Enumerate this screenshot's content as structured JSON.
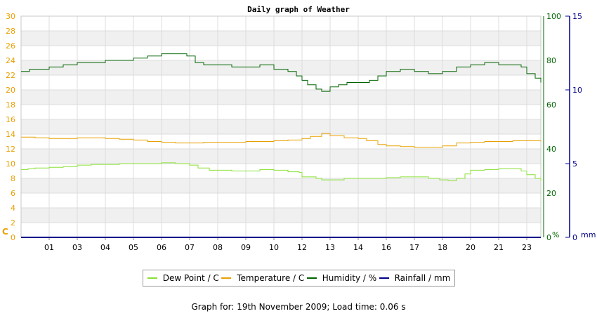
{
  "chart_data": {
    "type": "line",
    "title": "Daily graph of Weather",
    "footer": "Graph for: 19th November 2009; Load time: 0.06 s",
    "x_ticks": [
      "01",
      "03",
      "04",
      "05",
      "06",
      "07",
      "08",
      "09",
      "10",
      "12",
      "13",
      "14",
      "16",
      "17",
      "18",
      "20",
      "21",
      "23"
    ],
    "x_tick_hours": [
      1,
      2,
      3,
      4,
      5,
      6,
      7,
      8,
      9,
      10,
      11,
      12,
      13,
      14,
      15,
      16,
      17,
      18
    ],
    "x_range": [
      0,
      18.5
    ],
    "grid": true,
    "legend_position": "bottom",
    "left_axis": {
      "unit_label": "C",
      "range": [
        0,
        30
      ],
      "ticks": [
        0,
        2,
        4,
        6,
        8,
        10,
        12,
        14,
        16,
        18,
        20,
        22,
        24,
        26,
        28,
        30
      ],
      "color": "#e8a000"
    },
    "right_axis_1": {
      "unit_label": "%",
      "range": [
        0,
        100
      ],
      "ticks": [
        0,
        20,
        40,
        60,
        80,
        100
      ],
      "color": "#006400"
    },
    "right_axis_2": {
      "unit_label": "mm",
      "range": [
        0,
        15
      ],
      "ticks": [
        0,
        5,
        10,
        15
      ],
      "color": "#00008b"
    },
    "series": [
      {
        "name": "Dew Point / C",
        "axis": "left",
        "color": "#88e034",
        "points": [
          [
            0,
            9.2
          ],
          [
            0.25,
            9.3
          ],
          [
            0.5,
            9.4
          ],
          [
            1.0,
            9.5
          ],
          [
            1.5,
            9.6
          ],
          [
            2.0,
            9.8
          ],
          [
            2.5,
            9.9
          ],
          [
            3.0,
            9.9
          ],
          [
            3.5,
            10.0
          ],
          [
            4.0,
            10.0
          ],
          [
            4.5,
            10.0
          ],
          [
            5.0,
            10.1
          ],
          [
            5.5,
            10.0
          ],
          [
            6.0,
            9.8
          ],
          [
            6.3,
            9.4
          ],
          [
            6.7,
            9.1
          ],
          [
            7.0,
            9.1
          ],
          [
            7.5,
            9.0
          ],
          [
            8.0,
            9.0
          ],
          [
            8.5,
            9.2
          ],
          [
            9.0,
            9.1
          ],
          [
            9.5,
            8.9
          ],
          [
            9.9,
            8.8
          ],
          [
            10.0,
            8.2
          ],
          [
            10.5,
            8.0
          ],
          [
            10.7,
            7.8
          ],
          [
            11.0,
            7.8
          ],
          [
            11.5,
            8.0
          ],
          [
            12.0,
            8.0
          ],
          [
            12.5,
            8.0
          ],
          [
            13.0,
            8.1
          ],
          [
            13.5,
            8.2
          ],
          [
            14.0,
            8.2
          ],
          [
            14.5,
            8.0
          ],
          [
            14.9,
            7.8
          ],
          [
            15.2,
            7.7
          ],
          [
            15.5,
            8.0
          ],
          [
            15.8,
            8.6
          ],
          [
            16.0,
            9.1
          ],
          [
            16.5,
            9.2
          ],
          [
            17.0,
            9.3
          ],
          [
            17.5,
            9.3
          ],
          [
            17.8,
            9.0
          ],
          [
            18.0,
            8.5
          ],
          [
            18.3,
            8.0
          ],
          [
            18.5,
            7.7
          ]
        ]
      },
      {
        "name": "Temperature / C",
        "axis": "left",
        "color": "#e8a000",
        "points": [
          [
            0,
            13.6
          ],
          [
            0.5,
            13.5
          ],
          [
            1.0,
            13.4
          ],
          [
            1.5,
            13.4
          ],
          [
            2.0,
            13.5
          ],
          [
            2.5,
            13.5
          ],
          [
            3.0,
            13.4
          ],
          [
            3.5,
            13.3
          ],
          [
            4.0,
            13.2
          ],
          [
            4.5,
            13.0
          ],
          [
            5.0,
            12.9
          ],
          [
            5.5,
            12.8
          ],
          [
            6.0,
            12.8
          ],
          [
            6.5,
            12.9
          ],
          [
            7.0,
            12.9
          ],
          [
            7.5,
            12.9
          ],
          [
            8.0,
            13.0
          ],
          [
            8.5,
            13.0
          ],
          [
            9.0,
            13.1
          ],
          [
            9.5,
            13.2
          ],
          [
            10.0,
            13.4
          ],
          [
            10.3,
            13.7
          ],
          [
            10.7,
            14.1
          ],
          [
            11.0,
            13.8
          ],
          [
            11.5,
            13.5
          ],
          [
            12.0,
            13.4
          ],
          [
            12.3,
            13.1
          ],
          [
            12.7,
            12.6
          ],
          [
            13.0,
            12.4
          ],
          [
            13.5,
            12.3
          ],
          [
            14.0,
            12.2
          ],
          [
            14.5,
            12.2
          ],
          [
            15.0,
            12.4
          ],
          [
            15.5,
            12.8
          ],
          [
            16.0,
            12.9
          ],
          [
            16.5,
            13.0
          ],
          [
            17.0,
            13.0
          ],
          [
            17.5,
            13.1
          ],
          [
            18.0,
            13.1
          ],
          [
            18.5,
            13.0
          ]
        ]
      },
      {
        "name": "Humidity / %",
        "axis": "right_1",
        "color": "#006400",
        "points": [
          [
            0,
            75
          ],
          [
            0.3,
            76
          ],
          [
            1.0,
            77
          ],
          [
            1.5,
            78
          ],
          [
            2.0,
            79
          ],
          [
            2.5,
            79
          ],
          [
            3.0,
            80
          ],
          [
            3.5,
            80
          ],
          [
            4.0,
            81
          ],
          [
            4.5,
            82
          ],
          [
            5.0,
            83
          ],
          [
            5.5,
            83
          ],
          [
            5.9,
            82
          ],
          [
            6.2,
            79
          ],
          [
            6.5,
            78
          ],
          [
            7.0,
            78
          ],
          [
            7.5,
            77
          ],
          [
            8.0,
            77
          ],
          [
            8.5,
            78
          ],
          [
            9.0,
            76
          ],
          [
            9.5,
            75
          ],
          [
            9.8,
            73
          ],
          [
            10.0,
            71
          ],
          [
            10.2,
            69
          ],
          [
            10.5,
            67
          ],
          [
            10.7,
            66
          ],
          [
            11.0,
            68
          ],
          [
            11.3,
            69
          ],
          [
            11.6,
            70
          ],
          [
            12.0,
            70
          ],
          [
            12.4,
            71
          ],
          [
            12.7,
            73
          ],
          [
            13.0,
            75
          ],
          [
            13.5,
            76
          ],
          [
            14.0,
            75
          ],
          [
            14.5,
            74
          ],
          [
            15.0,
            75
          ],
          [
            15.5,
            77
          ],
          [
            16.0,
            78
          ],
          [
            16.5,
            79
          ],
          [
            17.0,
            78
          ],
          [
            17.5,
            78
          ],
          [
            17.8,
            77
          ],
          [
            18.0,
            74
          ],
          [
            18.3,
            72
          ],
          [
            18.5,
            70
          ]
        ]
      },
      {
        "name": "Rainfall / mm",
        "axis": "right_2",
        "color": "#00008b",
        "points": [
          [
            0,
            0
          ],
          [
            18.5,
            0
          ]
        ]
      }
    ]
  }
}
